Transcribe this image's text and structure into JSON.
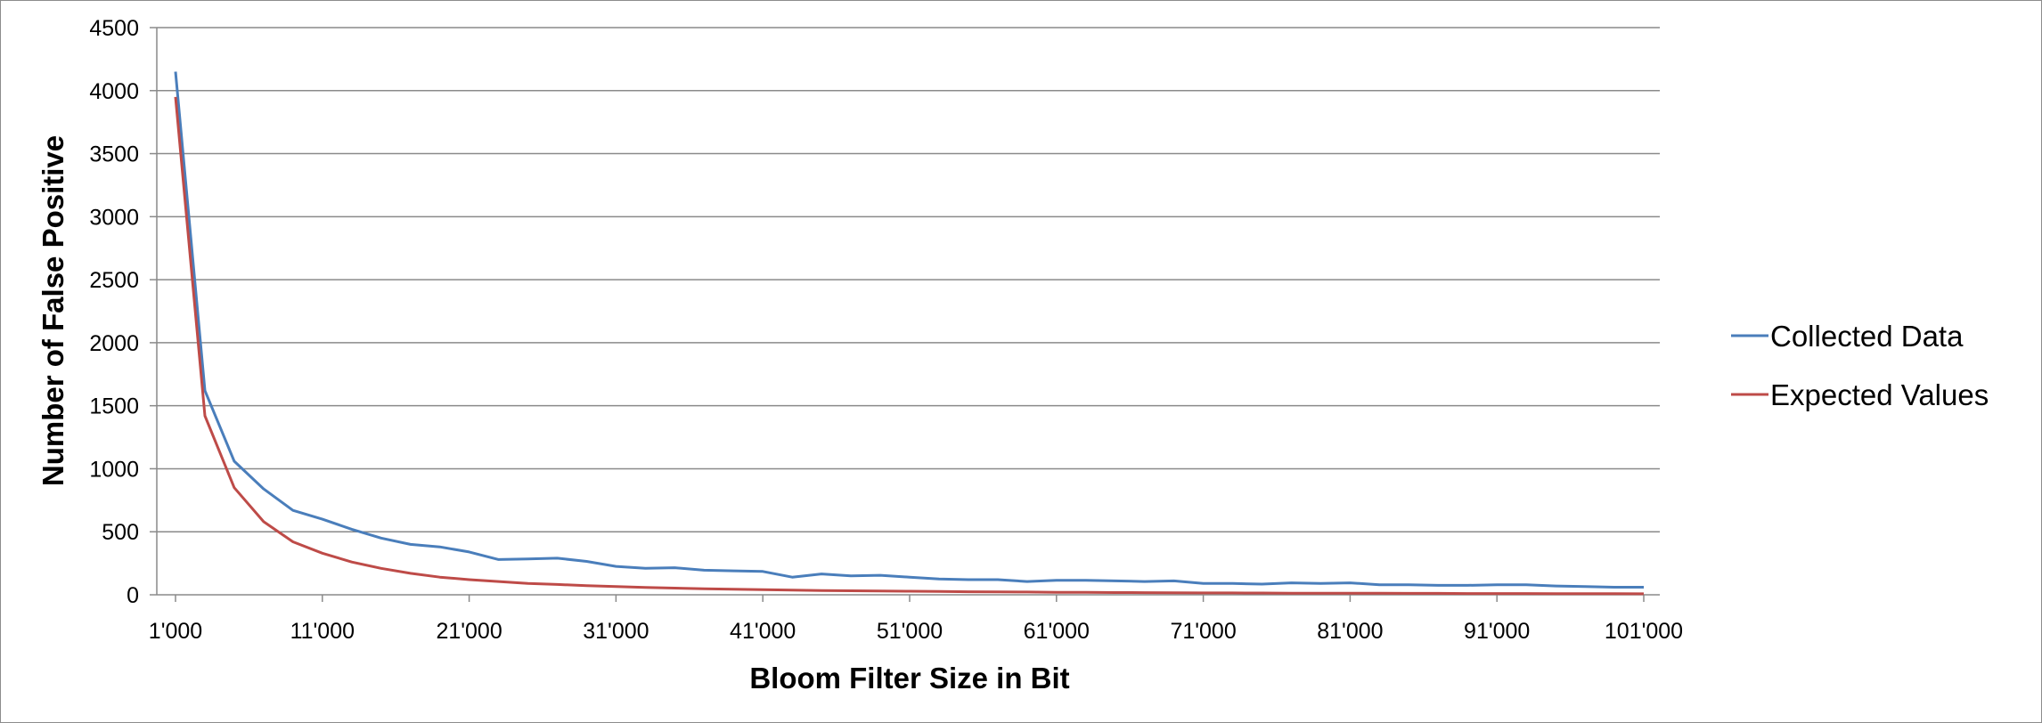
{
  "chart_data": {
    "type": "line",
    "title": "",
    "xlabel": "Bloom Filter Size in Bit",
    "ylabel": "Number of False Positive",
    "xlim": [
      1000,
      101000
    ],
    "ylim": [
      0,
      4500
    ],
    "y_ticks": [
      0,
      500,
      1000,
      1500,
      2000,
      2500,
      3000,
      3500,
      4000,
      4500
    ],
    "y_tick_labels": [
      "0",
      "500",
      "1000",
      "1500",
      "2000",
      "2500",
      "3000",
      "3500",
      "4000",
      "4500"
    ],
    "x_ticks": [
      1000,
      11000,
      21000,
      31000,
      41000,
      51000,
      61000,
      71000,
      81000,
      91000,
      101000
    ],
    "x_tick_labels": [
      "1'000",
      "11'000",
      "21'000",
      "31'000",
      "41'000",
      "51'000",
      "61'000",
      "71'000",
      "81'000",
      "91'000",
      "101'000"
    ],
    "grid": true,
    "legend_position": "right",
    "x": [
      1000,
      3000,
      5000,
      7000,
      9000,
      11000,
      13000,
      15000,
      17000,
      19000,
      21000,
      23000,
      25000,
      27000,
      29000,
      31000,
      33000,
      35000,
      37000,
      39000,
      41000,
      43000,
      45000,
      47000,
      49000,
      51000,
      53000,
      55000,
      57000,
      59000,
      61000,
      63000,
      65000,
      67000,
      69000,
      71000,
      73000,
      75000,
      77000,
      79000,
      81000,
      83000,
      85000,
      87000,
      89000,
      91000,
      93000,
      95000,
      97000,
      99000,
      101000
    ],
    "series": [
      {
        "name": "Collected Data",
        "color": "#4a7ebb",
        "values": [
          4150,
          1620,
          1060,
          840,
          670,
          600,
          520,
          450,
          400,
          380,
          340,
          280,
          285,
          290,
          265,
          225,
          210,
          215,
          195,
          190,
          185,
          140,
          165,
          150,
          155,
          140,
          125,
          120,
          120,
          105,
          115,
          115,
          110,
          105,
          110,
          90,
          90,
          85,
          95,
          90,
          95,
          80,
          80,
          75,
          75,
          80,
          80,
          70,
          65,
          60,
          60
        ]
      },
      {
        "name": "Expected Values",
        "color": "#be4b48",
        "values": [
          3950,
          1420,
          850,
          580,
          420,
          330,
          260,
          210,
          170,
          140,
          120,
          105,
          90,
          82,
          72,
          65,
          58,
          53,
          48,
          44,
          40,
          37,
          34,
          32,
          30,
          28,
          26,
          24,
          23,
          22,
          20,
          19,
          18,
          17,
          16,
          15,
          15,
          14,
          13,
          13,
          12,
          12,
          11,
          11,
          10,
          10,
          10,
          9,
          9,
          9,
          8
        ]
      }
    ]
  }
}
